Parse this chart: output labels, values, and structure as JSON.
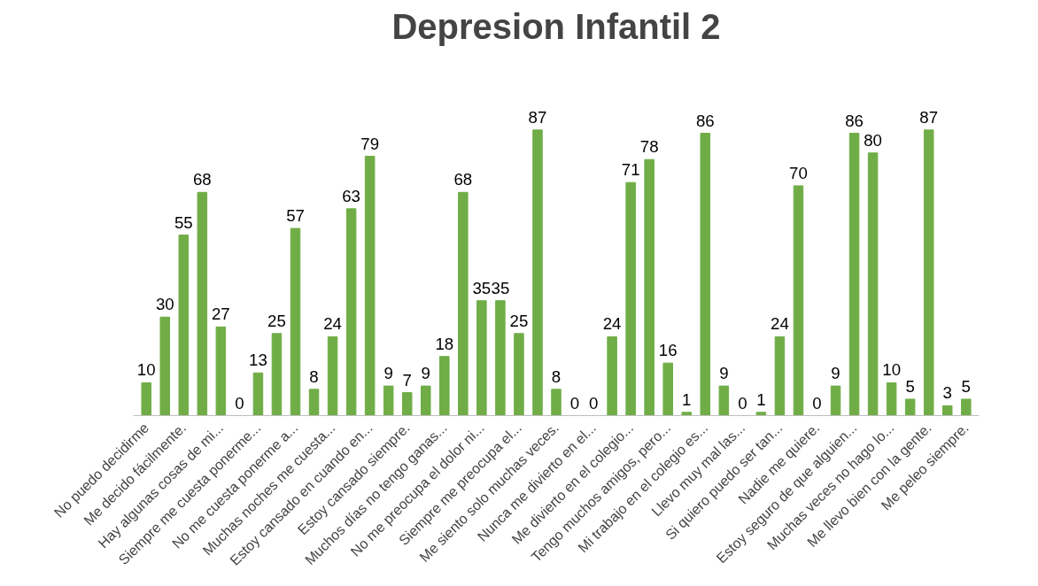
{
  "chart_data": {
    "type": "bar",
    "title": "Depresion Infantil 2",
    "categories": [
      "No puedo decidirme",
      null,
      "Me decido fácilmente.",
      null,
      "Hay algunas cosas de mi...",
      null,
      "Siempre me cuesta ponerme...",
      null,
      "No me cuesta ponerme a...",
      null,
      "Muchas noches me cuesta...",
      null,
      "Estoy cansado en cuando en...",
      null,
      "Estoy cansado siempre.",
      null,
      "Muchos días no tengo ganas...",
      null,
      "No me preocupa el dolor ni...",
      null,
      "Siempre me preocupa el...",
      null,
      "Me siento solo muchas veces.",
      null,
      "Nunca me divierto en el...",
      null,
      "Me divierto en el colegio...",
      null,
      "Tengo muchos amigos, pero...",
      null,
      "Mi trabajo en el colegio es...",
      null,
      "Llevo muy mal las...",
      null,
      "Si quiero puedo ser tan...",
      null,
      "Nadie me quiere.",
      null,
      "Estoy seguro de que alguien...",
      null,
      "Muchas veces no hago lo...",
      null,
      "Me llevo bien con la gente.",
      null,
      "Me peleo siempre."
    ],
    "values": [
      10,
      30,
      55,
      68,
      27,
      0,
      13,
      25,
      57,
      8,
      24,
      63,
      79,
      9,
      7,
      9,
      18,
      68,
      35,
      35,
      25,
      87,
      8,
      0,
      0,
      24,
      71,
      78,
      16,
      1,
      86,
      9,
      0,
      1,
      24,
      70,
      0,
      9,
      86,
      80,
      10,
      5,
      87,
      3,
      5
    ],
    "color": "#70ad47",
    "data_labels": true,
    "tick_labels": "x",
    "grid": false
  }
}
